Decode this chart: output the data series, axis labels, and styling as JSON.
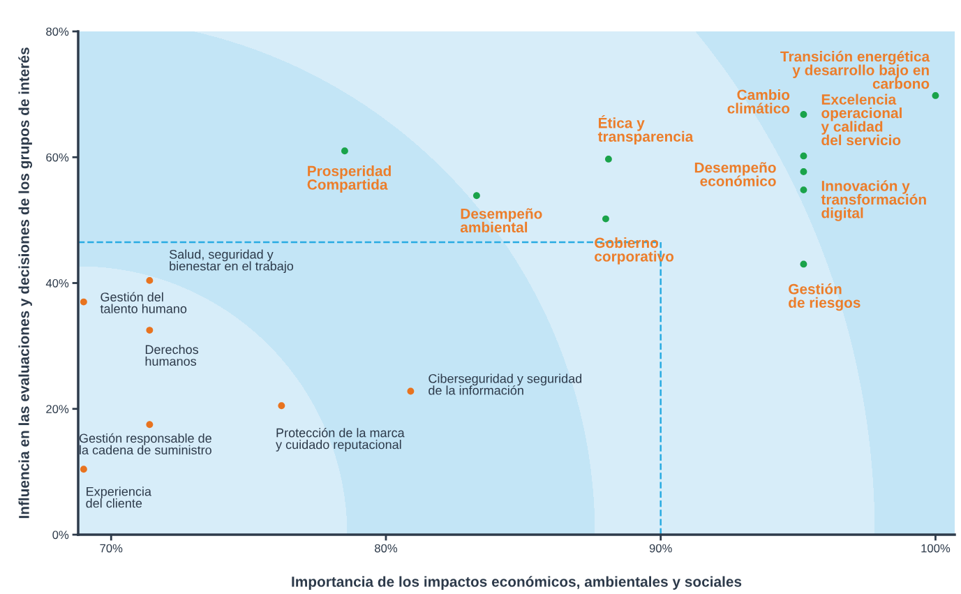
{
  "chart_data": {
    "type": "scatter",
    "xlabel": "Importancia de los impactos económicos, ambientales y sociales",
    "ylabel": "Influencia en las evaluaciones y decisiones de los grupos de interés",
    "series": [
      {
        "color": "#1aa34a",
        "x": [
          100.0,
          95.2,
          95.2,
          95.2,
          95.2,
          95.2,
          88.1,
          88.0,
          78.5,
          83.3
        ],
        "values": [
          69.8,
          66.8,
          60.2,
          57.7,
          54.8,
          43.0,
          59.7,
          50.2,
          61.0,
          53.9
        ]
      },
      {
        "color": "#e8731f",
        "x": [
          71.4,
          69.0,
          71.4,
          80.9,
          76.2,
          71.4,
          69.0
        ],
        "values": [
          40.4,
          37.0,
          32.5,
          22.8,
          20.5,
          17.5,
          10.4
        ]
      }
    ],
    "annotations": [
      {
        "text": "Transición energética\ny desarrollo bajo en\ncarbono",
        "x": 100.0,
        "y": 69.8
      },
      {
        "text": "Cambio\nclimático",
        "x": 95.2,
        "y": 66.8
      },
      {
        "text": "Excelencia\noperacional\ny calidad\ndel servicio",
        "x": 95.2,
        "y": 60.2
      },
      {
        "text": "Desempeño\neconómico",
        "x": 95.2,
        "y": 57.7
      },
      {
        "text": "Innovación y\ntransformación\ndigital",
        "x": 95.2,
        "y": 54.8
      },
      {
        "text": "Gestión\nde riesgos",
        "x": 95.2,
        "y": 43.0
      },
      {
        "text": "Ética y\ntransparencia",
        "x": 88.1,
        "y": 59.7
      },
      {
        "text": "Gobierno\ncorporativo",
        "x": 88.0,
        "y": 50.2
      },
      {
        "text": "Prosperidad\nCompartida",
        "x": 78.5,
        "y": 61.0
      },
      {
        "text": "Desempeño\nambiental",
        "x": 83.3,
        "y": 53.9
      },
      {
        "text": "Salud, seguridad y\nbienestar en el trabajo",
        "x": 71.4,
        "y": 40.4
      },
      {
        "text": "Gestión del\ntalento humano",
        "x": 69.0,
        "y": 37.0
      },
      {
        "text": "Derechos\nhumanos",
        "x": 71.4,
        "y": 32.5
      },
      {
        "text": "Ciberseguridad y seguridad\nde la información",
        "x": 80.9,
        "y": 22.8
      },
      {
        "text": "Protección de la marca\ny cuidado reputacional",
        "x": 76.2,
        "y": 20.5
      },
      {
        "text": "Gestión responsable de\nla cadena de suministro",
        "x": 71.4,
        "y": 17.5
      },
      {
        "text": "Experiencia\ndel cliente",
        "x": 69.0,
        "y": 10.4
      }
    ],
    "ref_lines": [
      {
        "axis": "y",
        "value": 46.5,
        "color": "#29abe2",
        "line_style": "dashed"
      },
      {
        "axis": "x",
        "value": 90,
        "color": "#29abe2",
        "line_style": "dashed"
      }
    ],
    "xlim": [
      68.8,
      100.7
    ],
    "ylim": [
      0,
      80
    ],
    "xticks": [
      {
        "value": 70,
        "label": "70%"
      },
      {
        "value": 80,
        "label": "80%"
      },
      {
        "value": 90,
        "label": "90%"
      },
      {
        "value": 100,
        "label": "100%"
      }
    ],
    "yticks": [
      {
        "value": 0,
        "label": "0%"
      },
      {
        "value": 20,
        "label": "20%"
      },
      {
        "value": 40,
        "label": "40%"
      },
      {
        "value": 60,
        "label": "60%"
      },
      {
        "value": 80,
        "label": "80%"
      }
    ],
    "grid": false,
    "legend": false,
    "marker": "circle"
  }
}
